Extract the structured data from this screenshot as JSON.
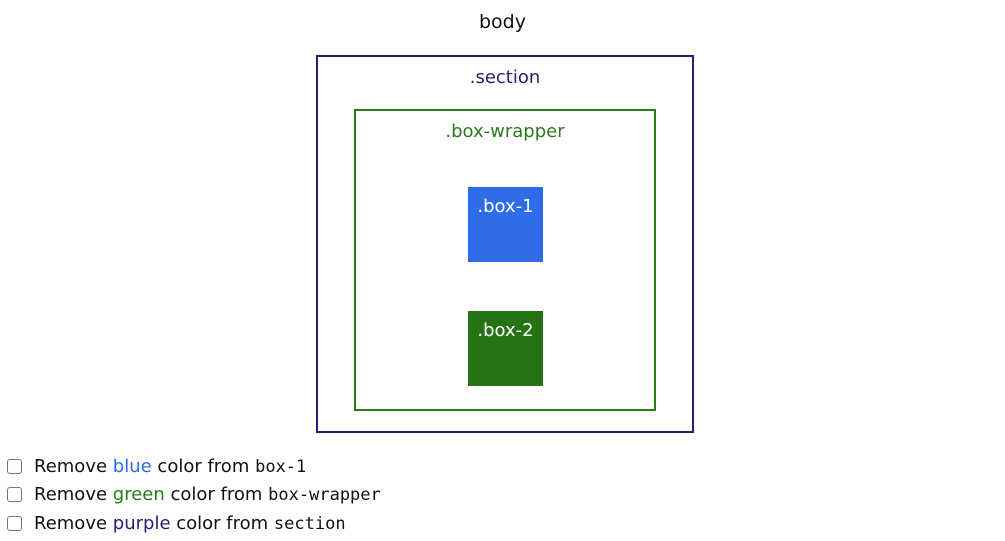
{
  "body_label": "body",
  "section": {
    "label": ".section",
    "color": "#2e1a6e"
  },
  "box_wrapper": {
    "label": ".box-wrapper",
    "color": "#2a7a1c"
  },
  "box1": {
    "label": ".box-1",
    "color": "#2f6de8"
  },
  "box2": {
    "label": ".box-2",
    "color": "#247413"
  },
  "controls": [
    {
      "prefix": "Remove ",
      "color_word": "blue",
      "middle": " color from ",
      "target": "box-1",
      "checked": false
    },
    {
      "prefix": "Remove ",
      "color_word": "green",
      "middle": " color from ",
      "target": "box-wrapper",
      "checked": false
    },
    {
      "prefix": "Remove ",
      "color_word": "purple",
      "middle": " color from ",
      "target": "section",
      "checked": false
    }
  ]
}
